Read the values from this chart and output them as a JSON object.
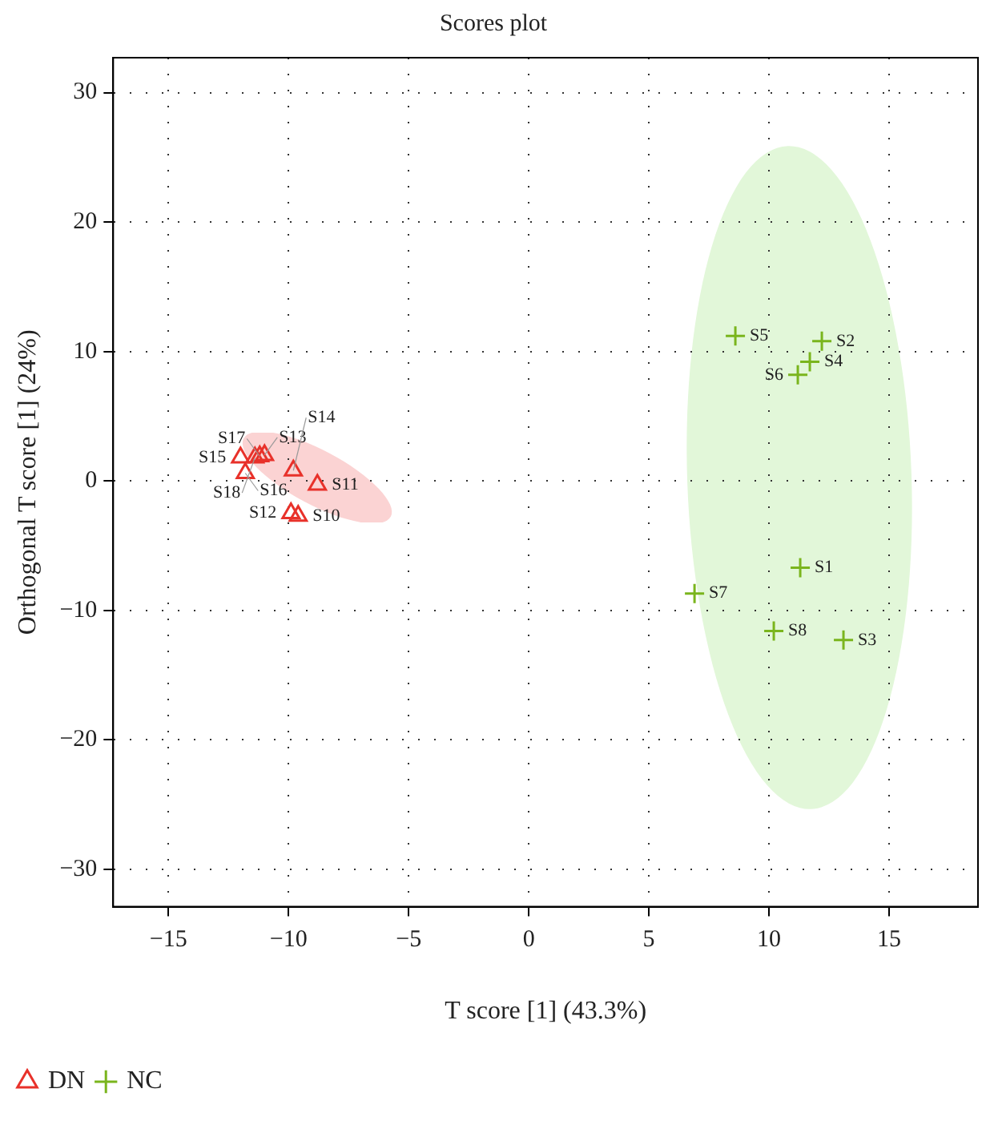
{
  "chart_data": {
    "type": "scatter",
    "title": "Scores plot",
    "xlabel": "T score [1] (43.3%)",
    "ylabel": "Orthogonal T score [1] (24%)",
    "xlim": [
      -17.3,
      18.7
    ],
    "xticks": [
      -15,
      -10,
      -5,
      0,
      5,
      10,
      15
    ],
    "ylim": [
      -32.9,
      32.7
    ],
    "yticks": [
      -30,
      -20,
      -10,
      0,
      10,
      20,
      30
    ],
    "grid": true,
    "legend": "bottom left",
    "series": [
      {
        "name": "DN",
        "color": "#e8312a",
        "marker": "triangle",
        "x": [
          -9.6,
          -8.8,
          -9.9,
          -11.0,
          -9.8,
          -12.0,
          -11.8,
          -11.2,
          -11.4
        ],
        "values": [
          -2.7,
          -0.3,
          -2.5,
          2.0,
          0.8,
          1.8,
          0.6,
          1.9,
          1.8
        ]
      },
      {
        "name": "NC",
        "color": "#7ab51d",
        "marker": "cross",
        "x": [
          11.3,
          12.2,
          13.1,
          11.7,
          8.6,
          11.2,
          6.9,
          10.2
        ],
        "values": [
          -6.7,
          10.8,
          -12.3,
          9.2,
          11.2,
          8.2,
          -8.7,
          -11.6
        ]
      }
    ],
    "annotations": [
      {
        "text": "S10",
        "x": -9.6,
        "y": -2.7
      },
      {
        "text": "S11",
        "x": -8.8,
        "y": -0.3
      },
      {
        "text": "S12",
        "x": -9.9,
        "y": -2.5
      },
      {
        "text": "S13",
        "x": -11.0,
        "y": 2.0
      },
      {
        "text": "S14",
        "x": -9.8,
        "y": 0.8
      },
      {
        "text": "S15",
        "x": -12.0,
        "y": 1.8
      },
      {
        "text": "S16",
        "x": -11.8,
        "y": 0.6
      },
      {
        "text": "S17",
        "x": -11.2,
        "y": 1.9
      },
      {
        "text": "S18",
        "x": -11.4,
        "y": 1.8
      },
      {
        "text": "S1",
        "x": 11.3,
        "y": -6.7
      },
      {
        "text": "S2",
        "x": 12.2,
        "y": 10.8
      },
      {
        "text": "S3",
        "x": 13.1,
        "y": -12.3
      },
      {
        "text": "S4",
        "x": 11.7,
        "y": 9.2
      },
      {
        "text": "S5",
        "x": 8.6,
        "y": 11.2
      },
      {
        "text": "S6",
        "x": 11.2,
        "y": 8.2
      },
      {
        "text": "S7",
        "x": 6.9,
        "y": -8.7
      },
      {
        "text": "S8",
        "x": 10.2,
        "y": -11.6
      }
    ]
  }
}
